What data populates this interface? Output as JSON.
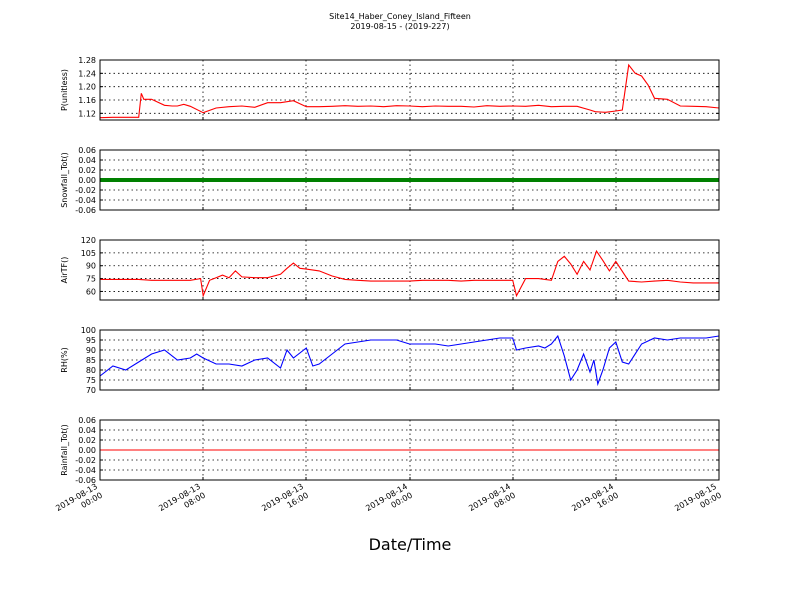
{
  "title": "Site14_Haber_Coney_Island_Fifteen",
  "subtitle": "2019-08-15 - (2019-227)",
  "xlabel": "Date/Time",
  "x_ticks": [
    {
      "l1": "2019-08-13",
      "l2": "00:00"
    },
    {
      "l1": "2019-08-13",
      "l2": "08:00"
    },
    {
      "l1": "2019-08-13",
      "l2": "16:00"
    },
    {
      "l1": "2019-08-14",
      "l2": "00:00"
    },
    {
      "l1": "2019-08-14",
      "l2": "08:00"
    },
    {
      "l1": "2019-08-14",
      "l2": "16:00"
    },
    {
      "l1": "2019-08-15",
      "l2": "00:00"
    }
  ],
  "chart_data": [
    {
      "type": "line",
      "ylabel": "P(unitless)",
      "color": "#ff0000",
      "ylim": [
        1.1,
        1.28
      ],
      "yticks": [
        "1.28",
        "1.24",
        "1.20",
        "1.16",
        "1.12"
      ],
      "ytick_values": [
        1.28,
        1.24,
        1.2,
        1.16,
        1.12
      ],
      "x_range_hours": [
        0,
        48
      ],
      "x": [
        0,
        1,
        2,
        3,
        3.2,
        3.4,
        4,
        5,
        5.6,
        6,
        6.5,
        7,
        8,
        9,
        10,
        11,
        12,
        13,
        14,
        15,
        16,
        17,
        18,
        19,
        20,
        21,
        22,
        23,
        24,
        25,
        26,
        27,
        28,
        29,
        30,
        31,
        32,
        33,
        34,
        35,
        36,
        37,
        38,
        38.4,
        38.8,
        39.2,
        40,
        40.5,
        41,
        41.5,
        42,
        42.5,
        43,
        44,
        45,
        46,
        47,
        48
      ],
      "values": [
        1.107,
        1.108,
        1.108,
        1.108,
        1.18,
        1.162,
        1.162,
        1.144,
        1.142,
        1.142,
        1.147,
        1.141,
        1.122,
        1.136,
        1.14,
        1.142,
        1.138,
        1.152,
        1.152,
        1.158,
        1.14,
        1.14,
        1.141,
        1.143,
        1.141,
        1.142,
        1.14,
        1.143,
        1.142,
        1.14,
        1.142,
        1.141,
        1.141,
        1.139,
        1.143,
        1.141,
        1.142,
        1.141,
        1.144,
        1.14,
        1.141,
        1.141,
        1.13,
        1.125,
        1.124,
        1.123,
        1.127,
        1.13,
        1.265,
        1.24,
        1.232,
        1.205,
        1.165,
        1.162,
        1.142,
        1.141,
        1.14,
        1.136
      ]
    },
    {
      "type": "scatter",
      "ylabel": "Snowfall_Tot()",
      "color": "#008000",
      "ylim": [
        -0.06,
        0.06
      ],
      "yticks": [
        "0.06",
        "0.04",
        "0.02",
        "0.00",
        "-0.02",
        "-0.04",
        "-0.06"
      ],
      "ytick_values": [
        0.06,
        0.04,
        0.02,
        0.0,
        -0.02,
        -0.04,
        -0.06
      ],
      "x_range_hours": [
        0,
        48
      ],
      "x": [
        0,
        48
      ],
      "values": [
        0,
        0
      ]
    },
    {
      "type": "line",
      "ylabel": "AirTF()",
      "color": "#ff0000",
      "ylim": [
        50,
        120
      ],
      "yticks": [
        "120",
        "105",
        "90",
        "75",
        "60"
      ],
      "ytick_values": [
        120,
        105,
        90,
        75,
        60
      ],
      "x_range_hours": [
        0,
        48
      ],
      "x": [
        0,
        1,
        2,
        3,
        4,
        5,
        6,
        7,
        7.8,
        8,
        8.5,
        9,
        9.5,
        10,
        10.5,
        11,
        12,
        13,
        14,
        14.5,
        15,
        15.5,
        16,
        17,
        18,
        19,
        20,
        21,
        22,
        23,
        24,
        25,
        26,
        27,
        28,
        29,
        30,
        31,
        32,
        32.3,
        33,
        34,
        34.5,
        35,
        35.5,
        36,
        36.5,
        37,
        37.5,
        38,
        38.5,
        39,
        39.5,
        40,
        41,
        42,
        43,
        44,
        45,
        46,
        47,
        48
      ],
      "values": [
        74,
        74,
        74,
        74,
        73,
        73,
        73,
        73,
        75,
        55,
        73,
        76,
        79,
        76,
        84,
        77,
        76,
        76,
        80,
        87,
        93,
        87,
        86,
        84,
        78,
        74,
        73,
        72,
        72,
        72,
        72,
        73,
        73,
        73,
        72,
        73,
        73,
        73,
        73,
        55,
        75,
        75,
        74,
        73,
        95,
        101,
        92,
        80,
        95,
        85,
        107,
        96,
        84,
        95,
        72,
        71,
        72,
        73,
        71,
        70,
        70,
        70
      ]
    },
    {
      "type": "line",
      "ylabel": "RH(%)",
      "color": "#0000ff",
      "ylim": [
        70,
        100
      ],
      "yticks": [
        "100",
        "95",
        "90",
        "85",
        "80",
        "75",
        "70"
      ],
      "ytick_values": [
        100,
        95,
        90,
        85,
        80,
        75,
        70
      ],
      "x_range_hours": [
        0,
        48
      ],
      "x": [
        0,
        1,
        2,
        3,
        4,
        5,
        6,
        7,
        7.5,
        8,
        9,
        10,
        11,
        12,
        13,
        14,
        14.5,
        15,
        16,
        16.5,
        17,
        18,
        19,
        20,
        21,
        22,
        23,
        24,
        25,
        26,
        27,
        28,
        29,
        30,
        31,
        32,
        32.3,
        33,
        34,
        34.5,
        35,
        35.5,
        36,
        36.5,
        37,
        37.5,
        38,
        38.3,
        38.6,
        39,
        39.5,
        40,
        40.5,
        41,
        42,
        43,
        44,
        45,
        46,
        47,
        48
      ],
      "values": [
        77,
        82,
        80,
        84,
        88,
        90,
        85,
        86,
        88,
        86,
        83,
        83,
        82,
        85,
        86,
        81,
        90,
        86,
        91,
        82,
        83,
        88,
        93,
        94,
        95,
        95,
        95,
        93,
        93,
        93,
        92,
        93,
        94,
        95,
        96,
        96,
        90,
        91,
        92,
        91,
        93,
        97,
        87,
        75,
        80,
        88,
        79,
        85,
        73,
        80,
        91,
        94,
        84,
        83,
        93,
        96,
        95,
        96,
        96,
        96,
        97
      ]
    },
    {
      "type": "line",
      "ylabel": "Rainfall_Tot()",
      "color": "#ff0000",
      "ylim": [
        -0.06,
        0.06
      ],
      "yticks": [
        "0.06",
        "0.04",
        "0.02",
        "0.00",
        "-0.02",
        "-0.04",
        "-0.06"
      ],
      "ytick_values": [
        0.06,
        0.04,
        0.02,
        0.0,
        -0.02,
        -0.04,
        -0.06
      ],
      "x_range_hours": [
        0,
        48
      ],
      "x": [
        0,
        48
      ],
      "values": [
        0,
        0
      ]
    }
  ]
}
